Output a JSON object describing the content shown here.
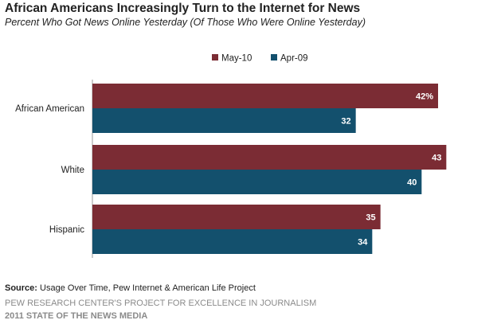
{
  "title": "African Americans Increasingly Turn to the Internet for News",
  "subtitle": "Percent Who Got News Online Yesterday (Of Those Who Were Online Yesterday)",
  "source_label": "Source:",
  "source_text": "Usage Over Time, Pew Internet & American Life Project",
  "footer_org": "PEW RESEARCH CENTER'S PROJECT FOR EXCELLENCE IN JOURNALISM",
  "footer_report": "2011 STATE OF THE NEWS MEDIA",
  "chart_data": {
    "type": "bar",
    "orientation": "horizontal",
    "categories": [
      "African American",
      "White",
      "Hispanic"
    ],
    "series": [
      {
        "name": "May-10",
        "values": [
          42,
          43,
          35
        ],
        "labels": [
          "42%",
          "43",
          "35"
        ],
        "color": "#7b2c34"
      },
      {
        "name": "Apr-09",
        "values": [
          32,
          40,
          34
        ],
        "labels": [
          "32",
          "40",
          "34"
        ],
        "color": "#13506d"
      }
    ],
    "xlim": [
      0,
      45
    ],
    "grid": false,
    "legend_position": "top-right"
  }
}
